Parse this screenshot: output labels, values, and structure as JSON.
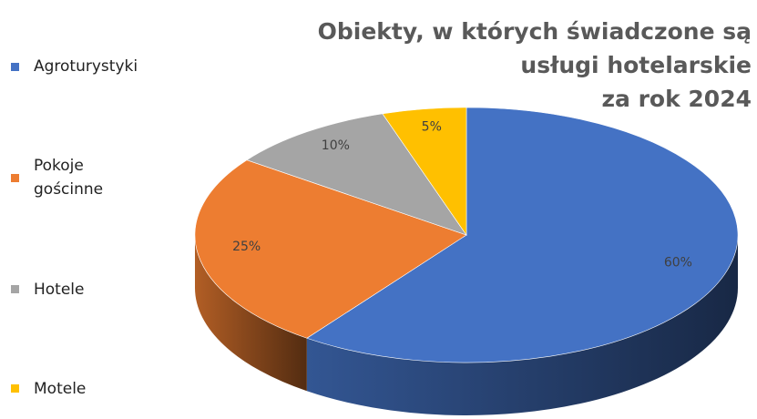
{
  "chart_data": {
    "type": "pie3d",
    "title": [
      "Obiekty, w których świadczone są",
      "usługi hotelarskie",
      "za rok 2024"
    ],
    "categories": [
      "Agroturystyki",
      "Pokoje gościnne",
      "Hotele",
      "Motele"
    ],
    "values": [
      60,
      25,
      10,
      5
    ],
    "value_labels": [
      "60%",
      "25%",
      "10%",
      "5%"
    ],
    "colors": [
      "#4472c4",
      "#ed7d31",
      "#a5a5a5",
      "#ffc000"
    ],
    "legend": "left"
  }
}
